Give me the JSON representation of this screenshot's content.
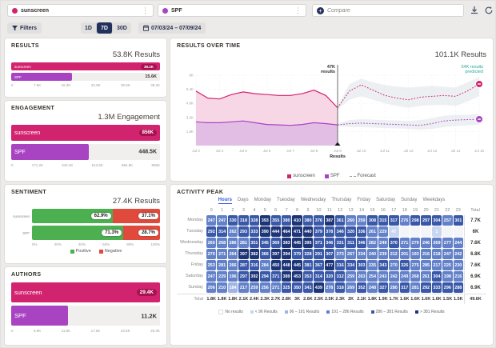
{
  "topbar": {
    "queries": [
      {
        "label": "sunscreen",
        "color": "#d2246e"
      },
      {
        "label": "SPF",
        "color": "#a844c2"
      }
    ],
    "compare_label": "Compare"
  },
  "filterbar": {
    "filters_label": "Filters",
    "ranges": [
      {
        "label": "1D",
        "active": false
      },
      {
        "label": "7D",
        "active": true
      },
      {
        "label": "30D",
        "active": false
      }
    ],
    "date_range": "07/03/24 – 07/09/24"
  },
  "chart_data": [
    {
      "id": "results",
      "type": "bar",
      "title": "RESULTS",
      "total": "53.8K Results",
      "categories": [
        "sunscreen",
        "SPF"
      ],
      "values": [
        38200,
        15600
      ],
      "value_labels": [
        "38.2K",
        "15.6K"
      ],
      "colors": [
        "#d2246e",
        "#a844c2"
      ],
      "badge_colors": [
        "#a8114f",
        "#8a2fa6"
      ],
      "xmax": 38200,
      "axis": [
        "0",
        "7.6K",
        "15.3K",
        "22.9K",
        "30.6K",
        "38.2K"
      ]
    },
    {
      "id": "engagement",
      "type": "bar",
      "title": "ENGAGEMENT",
      "total": "1.3M Engagement",
      "categories": [
        "sunscreen",
        "SPF"
      ],
      "values": [
        856000,
        448500
      ],
      "value_labels": [
        "856K",
        "448.5K"
      ],
      "colors": [
        "#d2246e",
        "#a844c2"
      ],
      "badge_colors": [
        "#a8114f",
        "#8a2fa6"
      ],
      "xmax": 856000,
      "axis": [
        "0",
        "171.2K",
        "342.4K",
        "513.6K",
        "684.8K",
        "856K"
      ]
    },
    {
      "id": "sentiment",
      "type": "stacked-bar",
      "title": "SENTIMENT",
      "total": "27.4K Results",
      "categories": [
        "sunscreen",
        "SPF"
      ],
      "series": [
        {
          "name": "Positive",
          "color": "#4caf50",
          "values": [
            62.9,
            71.3
          ],
          "labels": [
            "62.9%",
            "71.3%"
          ]
        },
        {
          "name": "Negative",
          "color": "#e04a3c",
          "values": [
            37.1,
            28.7
          ],
          "labels": [
            "37.1%",
            "28.7%"
          ]
        }
      ],
      "axis": [
        "0%",
        "20%",
        "40%",
        "60%",
        "80%",
        "100%"
      ],
      "legend": [
        {
          "label": "Positive",
          "color": "#4caf50"
        },
        {
          "label": "Negative",
          "color": "#e04a3c"
        }
      ]
    },
    {
      "id": "authors",
      "type": "bar",
      "title": "AUTHORS",
      "total": "",
      "categories": [
        "sunscreen",
        "SPF"
      ],
      "values": [
        29400,
        11200
      ],
      "value_labels": [
        "29.4K",
        "11.2K"
      ],
      "colors": [
        "#d2246e",
        "#a844c2"
      ],
      "badge_colors": [
        "#a8114f",
        "#8a2fa6"
      ],
      "xmax": 29400,
      "axis": [
        "0",
        "5.9K",
        "11.8K",
        "17.6K",
        "23.5K",
        "29.4K"
      ]
    },
    {
      "id": "results_over_time",
      "type": "line",
      "title": "RESULTS OVER TIME",
      "total": "101.1K Results",
      "annotation": {
        "line1": "47K",
        "line2": "results",
        "x_label": "Jul 9"
      },
      "predicted": {
        "line1": "54K results",
        "line2": "predicted",
        "color": "#2aa79b"
      },
      "marker_label": "Results",
      "ylim": [
        0,
        8000
      ],
      "yticks": [
        1600,
        3200,
        4800,
        6400,
        8000
      ],
      "ytick_labels": [
        "1.6K",
        "3.2K",
        "4.8K",
        "6.4K",
        "8K"
      ],
      "x_labels": [
        "Jul 3",
        "Jul 4",
        "Jul 5",
        "Jul 6",
        "Jul 7",
        "Jul 8",
        "Jul 9",
        "Jul 10",
        "Jul 11",
        "Jul 12",
        "Jul 13",
        "Jul 14",
        "Jul 15"
      ],
      "split_x": 6,
      "band_color": "#dfe4e7",
      "series": [
        {
          "name": "sunscreen",
          "color": "#d2246e",
          "area_color": "#f6cfe2",
          "actual": [
            6200,
            5400,
            5300,
            5800,
            6100,
            5900,
            5800,
            5700,
            5700,
            5900,
            6300,
            5700,
            4300
          ],
          "forecast": [
            4300,
            6200,
            6900,
            6300,
            5700,
            5400,
            5200,
            5500,
            5600,
            5700,
            5600,
            6200,
            7000
          ],
          "band_upper": [
            4500,
            7000,
            7600,
            7200,
            6900,
            6700,
            6600,
            6700,
            6800,
            6700,
            6600,
            7200,
            7800
          ],
          "band_lower": [
            4100,
            5200,
            5600,
            5200,
            4800,
            4500,
            4300,
            4500,
            4600,
            4600,
            4500,
            5000,
            5600
          ]
        },
        {
          "name": "SPF",
          "color": "#a844c2",
          "area_color": "#debae4",
          "actual": [
            2700,
            2600,
            2600,
            2700,
            2800,
            2600,
            2400,
            2350,
            2300,
            2400,
            2600,
            2500,
            2350
          ],
          "forecast": [
            2350,
            2500,
            2550,
            2500,
            2450,
            2400,
            2350,
            2300,
            2500,
            2800,
            2900,
            2950,
            3000
          ],
          "band_upper": [
            2500,
            2900,
            3000,
            2950,
            2900,
            2850,
            2800,
            2900,
            3100,
            3400,
            3500,
            3500,
            3600
          ],
          "band_lower": [
            2200,
            2100,
            2100,
            2050,
            2000,
            1950,
            1900,
            1800,
            1900,
            2100,
            2200,
            2300,
            2400
          ]
        }
      ],
      "legend": [
        {
          "label": "sunscreen",
          "color": "#d2246e",
          "dashed": false
        },
        {
          "label": "SPF",
          "color": "#a844c2",
          "dashed": false
        },
        {
          "label": "Forecast",
          "color": "#999999",
          "dashed": true
        }
      ]
    },
    {
      "id": "activity_peak",
      "type": "heatmap",
      "title": "ACTIVITY PEAK",
      "tabs": [
        "Hours",
        "Days",
        "Monday",
        "Tuesday",
        "Wednesday",
        "Thursday",
        "Friday",
        "Saturday",
        "Sunday",
        "Weekdays"
      ],
      "active_tab": "Hours",
      "col_headers": [
        "0",
        "1",
        "2",
        "3",
        "4",
        "5",
        "6",
        "7",
        "8",
        "9",
        "10",
        "11",
        "12",
        "13",
        "14",
        "15",
        "16",
        "17",
        "18",
        "19",
        "20",
        "21",
        "22",
        "23"
      ],
      "total_header": "Total",
      "rows": [
        {
          "label": "Monday",
          "values": [
            247,
            247,
            330,
            318,
            328,
            393,
            355,
            380,
            410,
            380,
            376,
            387,
            361,
            260,
            259,
            308,
            315,
            317,
            276,
            298,
            297,
            304,
            257,
            301
          ],
          "total": "7.7K"
        },
        {
          "label": "Tuesday",
          "values": [
            292,
            314,
            262,
            293,
            333,
            390,
            444,
            464,
            471,
            440,
            379,
            378,
            346,
            320,
            336,
            261,
            229,
            47,
            null,
            null,
            null,
            1,
            null,
            null
          ],
          "total": "6K"
        },
        {
          "label": "Wednesday",
          "values": [
            260,
            268,
            286,
            281,
            351,
            345,
            369,
            383,
            445,
            395,
            371,
            346,
            331,
            311,
            346,
            282,
            249,
            370,
            271,
            279,
            246,
            269,
            277,
            244
          ],
          "total": "7.6K"
        },
        {
          "label": "Thursday",
          "values": [
            270,
            271,
            264,
            397,
            382,
            366,
            397,
            394,
            379,
            328,
            291,
            307,
            273,
            267,
            234,
            240,
            239,
            212,
            201,
            193,
            216,
            218,
            247,
            242
          ],
          "total": "6.8K"
        },
        {
          "label": "Friday",
          "values": [
            253,
            281,
            266,
            287,
            316,
            284,
            450,
            448,
            445,
            381,
            367,
            477,
            316,
            334,
            303,
            235,
            343,
            270,
            326,
            275,
            285,
            217,
            225,
            230
          ],
          "total": "7.6K"
        },
        {
          "label": "Saturday",
          "values": [
            247,
            229,
            196,
            297,
            392,
            294,
            371,
            389,
            453,
            353,
            314,
            320,
            312,
            259,
            263,
            254,
            243,
            242,
            249,
            268,
            261,
            304,
            198,
            216
          ],
          "total": "6.9K"
        },
        {
          "label": "Sunday",
          "values": [
            206,
            210,
            184,
            217,
            259,
            256,
            271,
            325,
            350,
            341,
            439,
            278,
            318,
            269,
            352,
            248,
            327,
            280,
            317,
            281,
            292,
            333,
            296,
            288
          ],
          "total": "6.9K"
        }
      ],
      "totals_row": {
        "label": "Total",
        "values": [
          "1.8K",
          "1.8K",
          "1.8K",
          "2.1K",
          "2.4K",
          "2.3K",
          "2.7K",
          "2.8K",
          "3K",
          "2.6K",
          "2.5K",
          "2.5K",
          "2.3K",
          "2K",
          "2.1K",
          "1.8K",
          "1.9K",
          "1.7K",
          "1.6K",
          "1.6K",
          "1.6K",
          "1.6K",
          "1.5K",
          "1.5K"
        ],
        "grand": "49.6K"
      },
      "thresholds": [
        96,
        191,
        286,
        381
      ],
      "palette": {
        "none": "#f3f5f9",
        "b1": "#c9d6ef",
        "b2": "#9fb4e3",
        "b3": "#6381c8",
        "b4": "#3a58a8",
        "b5": "#1d3477"
      },
      "legend": [
        {
          "label": "No results",
          "color": "#ffffff"
        },
        {
          "label": "< 96 Results",
          "color": "#c9d6ef"
        },
        {
          "label": "96 – 191 Results",
          "color": "#9fb4e3"
        },
        {
          "label": "191 – 286 Results",
          "color": "#6381c8"
        },
        {
          "label": "286 – 381 Results",
          "color": "#3a58a8"
        },
        {
          "label": "> 381 Results",
          "color": "#1d3477"
        }
      ]
    }
  ]
}
